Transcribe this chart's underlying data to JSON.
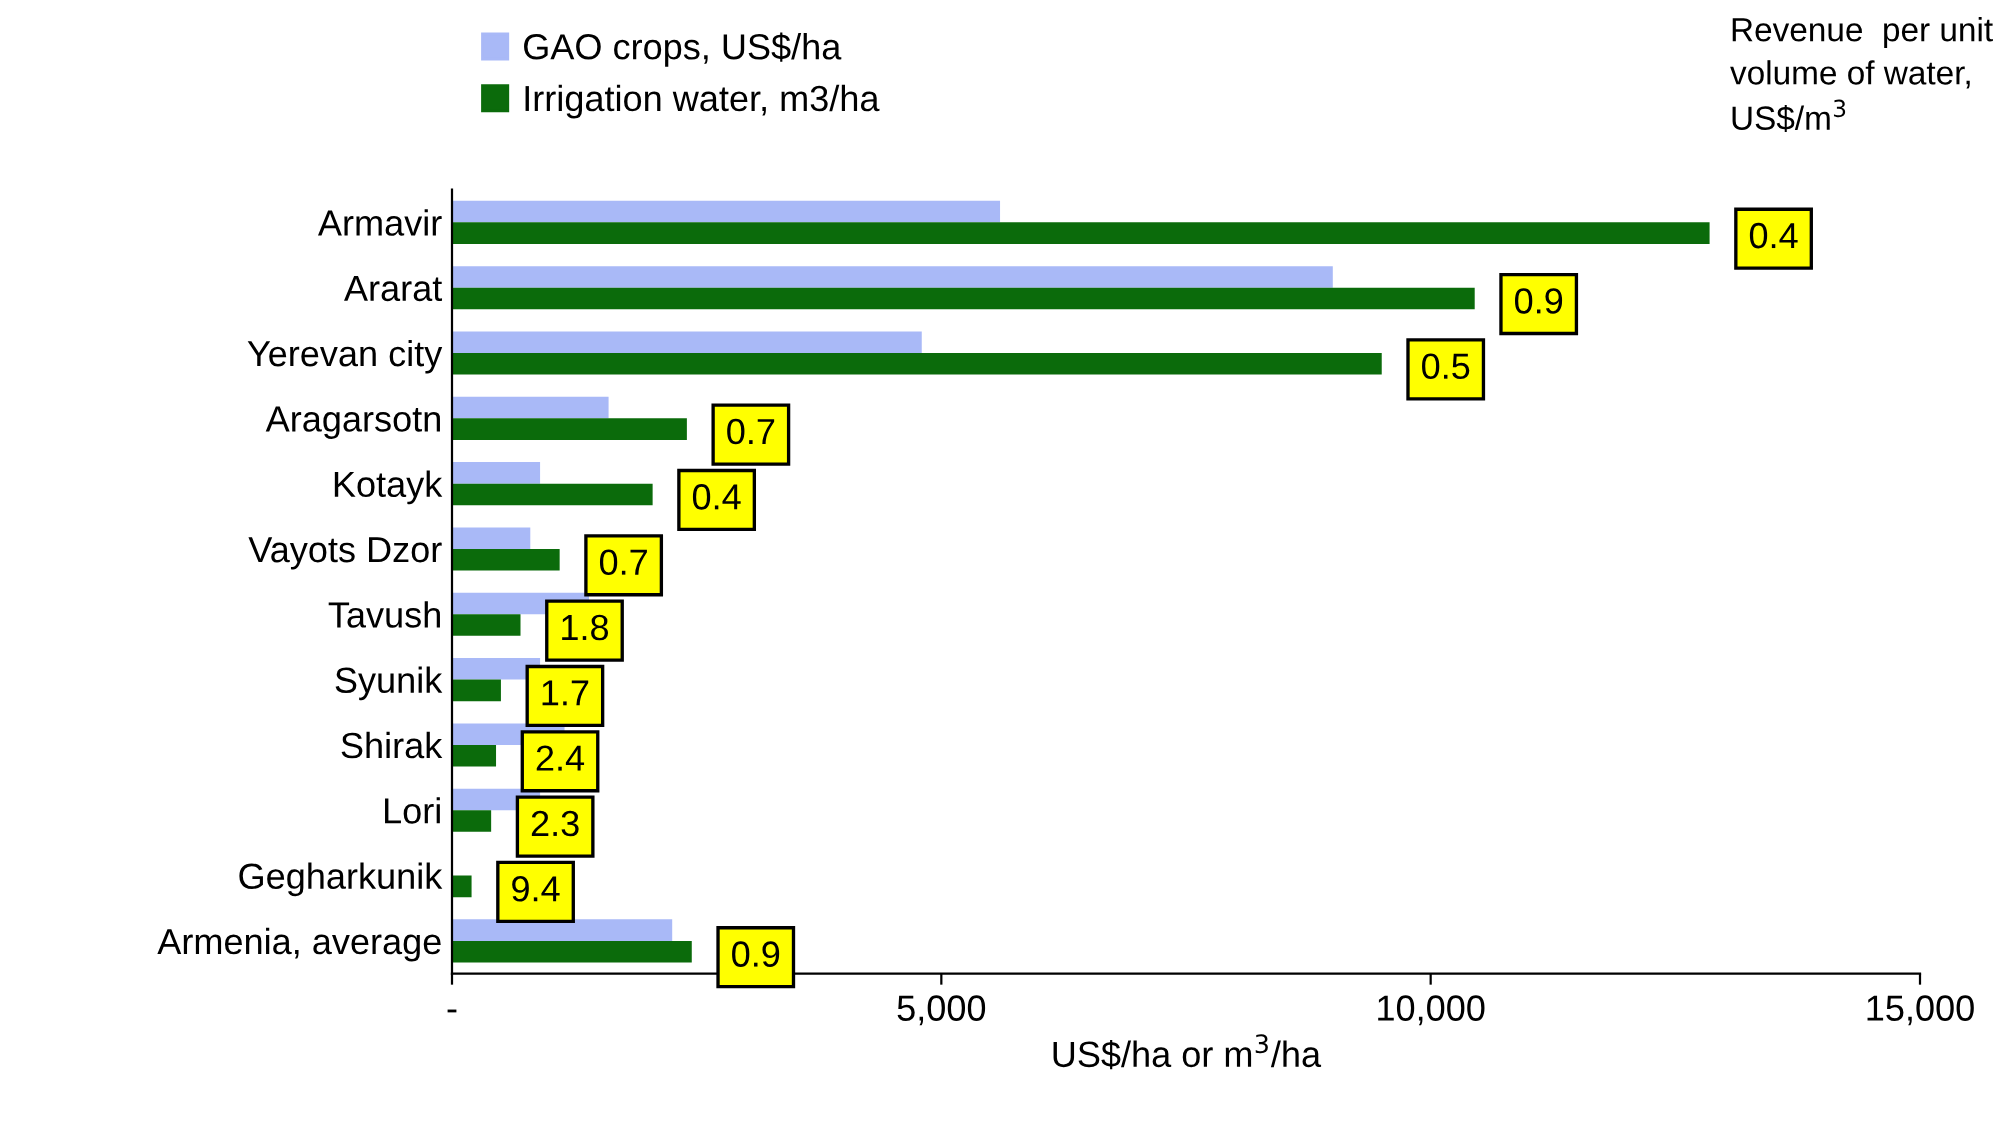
{
  "chart_data": {
    "type": "bar",
    "orientation": "horizontal",
    "xlabel": "US$/ha or m$^{3}$/ha",
    "categories": [
      "Armavir",
      "Ararat",
      "Yerevan city",
      "Aragarsotn",
      "Kotayk",
      "Vayots Dzor",
      "Tavush",
      "Syunik",
      "Shirak",
      "Lori",
      "Gegharkunik",
      "Armenia, average"
    ],
    "series": [
      {
        "name": "GAO crops, US$/ha",
        "color": "#a9b9f7",
        "values": [
          5600,
          9000,
          4800,
          1600,
          900,
          800,
          1400,
          900,
          1150,
          900,
          null,
          2250
        ]
      },
      {
        "name": "Irrigation water, m3/ha",
        "color": "#0b6b0b",
        "values": [
          12850,
          10450,
          9500,
          2400,
          2050,
          1100,
          700,
          500,
          450,
          400,
          200,
          2450
        ]
      }
    ],
    "xlim": [
      0,
      15000
    ],
    "xticks": [
      {
        "value": 0,
        "label": "-"
      },
      {
        "value": 5000,
        "label": "5,000"
      },
      {
        "value": 10000,
        "label": "10,000"
      },
      {
        "value": 15000,
        "label": "15,000"
      }
    ],
    "grid": false,
    "legend": "top left",
    "annotations": [
      {
        "text": "0.4",
        "x": 12850,
        "y": "Armavir"
      },
      {
        "text": "0.9",
        "x": 10450,
        "y": "Ararat"
      },
      {
        "text": "0.5",
        "x": 9500,
        "y": "Yerevan city"
      },
      {
        "text": "0.7",
        "x": 2400,
        "y": "Aragarsotn"
      },
      {
        "text": "0.4",
        "x": 2050,
        "y": "Kotayk"
      },
      {
        "text": "0.7",
        "x": 1100,
        "y": "Vayots Dzor"
      },
      {
        "text": "1.8",
        "x": 700,
        "y": "Tavush"
      },
      {
        "text": "1.7",
        "x": 500,
        "y": "Syunik"
      },
      {
        "text": "2.4",
        "x": 450,
        "y": "Shirak"
      },
      {
        "text": "2.3",
        "x": 400,
        "y": "Lori"
      },
      {
        "text": "9.4",
        "x": 200,
        "y": "Gegharkunik"
      },
      {
        "text": "0.9",
        "x": 2450,
        "y": "Armenia, average"
      },
      "Revenue  per unit volume of water, US$/m$^{3}$"
    ]
  }
}
